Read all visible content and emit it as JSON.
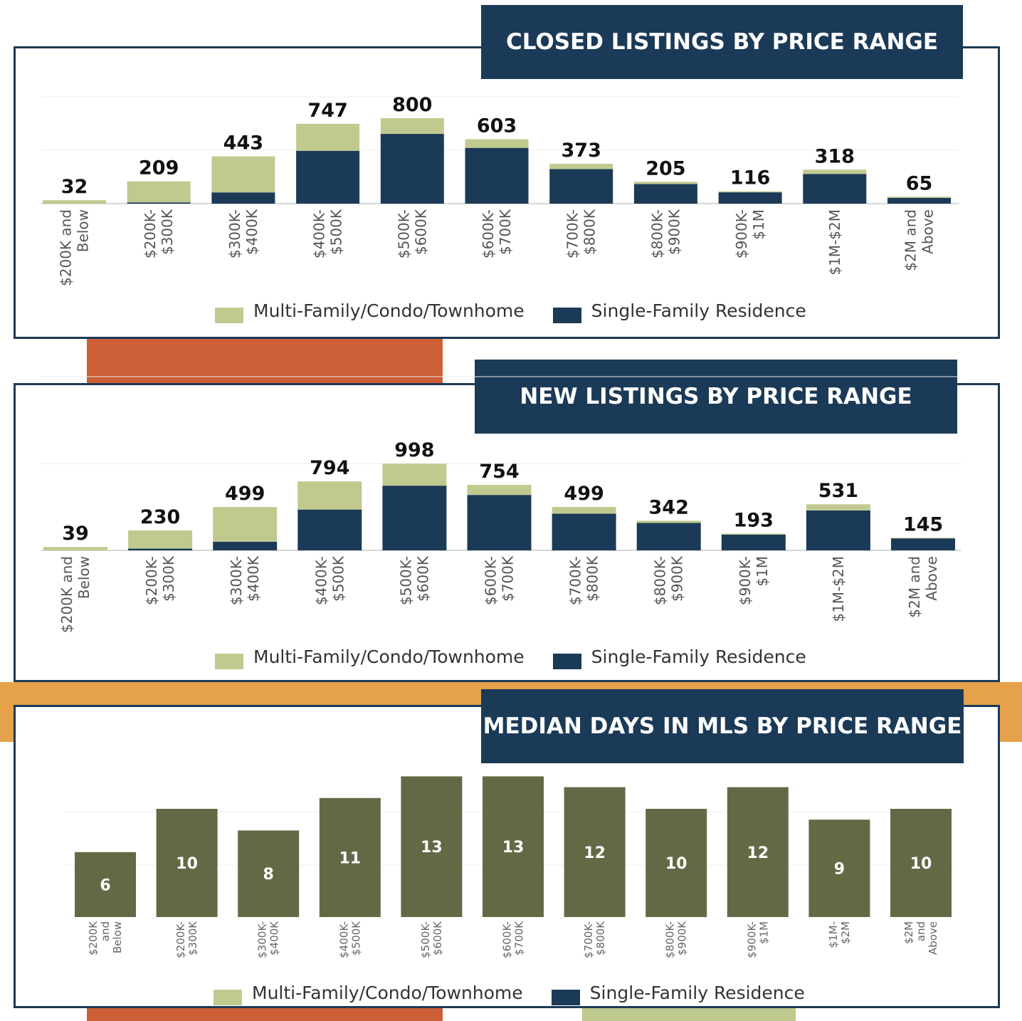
{
  "colors": {
    "navy": "#1b3a57",
    "sage": "#c0ca8f",
    "olive": "#626a45",
    "rust": "#cc5f35",
    "orange": "#e5a24a",
    "light_green": "#bdc98d"
  },
  "legend": {
    "multi_label": "Multi-Family/Condo/Townhome",
    "single_label": "Single-Family Residence"
  },
  "chart_data": [
    {
      "type": "bar",
      "stacked": true,
      "title": "CLOSED LISTINGS BY PRICE RANGE",
      "categories": [
        "$200K and Below",
        "$200K- $300K",
        "$300K- $400K",
        "$400K- $500K",
        "$500K- $600K",
        "$600K- $700K",
        "$700K- $800K",
        "$800K- $900K",
        "$900K- $1M",
        "$1M-$2M",
        "$2M and Above"
      ],
      "totals": [
        32,
        209,
        443,
        747,
        800,
        603,
        373,
        205,
        116,
        318,
        65
      ],
      "series": [
        {
          "name": "Single-Family Residence",
          "values": [
            0,
            12,
            105,
            495,
            653,
            522,
            323,
            183,
            106,
            278,
            54
          ]
        },
        {
          "name": "Multi-Family/Condo/Townhome",
          "values": [
            32,
            197,
            338,
            252,
            147,
            81,
            50,
            22,
            10,
            40,
            11
          ]
        }
      ],
      "ylim": [
        0,
        1000
      ],
      "legend_position": "bottom"
    },
    {
      "type": "bar",
      "stacked": true,
      "title": "NEW LISTINGS BY PRICE RANGE",
      "categories": [
        "$200K and Below",
        "$200K- $300K",
        "$300K- $400K",
        "$400K- $500K",
        "$500K- $600K",
        "$600K- $700K",
        "$700K- $800K",
        "$800K- $900K",
        "$900K- $1M",
        "$1M-$2M",
        "$2M and Above"
      ],
      "totals": [
        39,
        230,
        499,
        794,
        998,
        754,
        499,
        342,
        193,
        531,
        145
      ],
      "series": [
        {
          "name": "Single-Family Residence",
          "values": [
            0,
            20,
            100,
            470,
            745,
            638,
            422,
            316,
            182,
            460,
            138
          ]
        },
        {
          "name": "Multi-Family/Condo/Townhome",
          "values": [
            39,
            210,
            399,
            324,
            253,
            116,
            77,
            26,
            11,
            71,
            7
          ]
        }
      ],
      "ylim": [
        0,
        2000
      ],
      "legend_position": "bottom"
    },
    {
      "type": "bar",
      "title": "MEDIAN DAYS IN MLS BY PRICE RANGE",
      "categories": [
        "$200K and Below",
        "$200K- $300K",
        "$300K- $400K",
        "$400K- $500K",
        "$500K- $600K",
        "$600K- $700K",
        "$700K- $800K",
        "$800K- $900K",
        "$900K- $1M",
        "$1M- $2M",
        "$2M and Above"
      ],
      "values": [
        6,
        10,
        8,
        11,
        13,
        13,
        12,
        10,
        12,
        9,
        10
      ],
      "ylim": [
        0,
        13
      ],
      "legend_position": "bottom"
    }
  ]
}
